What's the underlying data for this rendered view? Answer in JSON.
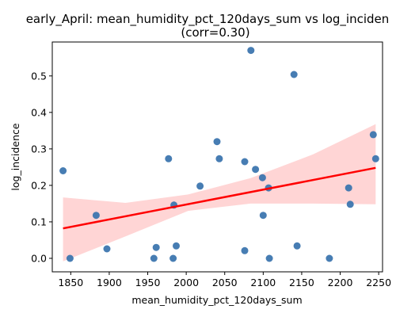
{
  "chart_data": {
    "type": "scatter",
    "title_line1": "early_April: mean_humidity_pct_120days_sum vs log_inciden",
    "title_line2": "(corr=0.30)",
    "xlabel": "mean_humidity_pct_120days_sum",
    "ylabel": "log_incidence",
    "xlim": [
      1826,
      2255
    ],
    "ylim": [
      -0.037,
      0.593
    ],
    "xticks": [
      1850,
      1900,
      1950,
      2000,
      2050,
      2100,
      2150,
      2200,
      2250
    ],
    "yticks": [
      0.0,
      0.1,
      0.2,
      0.3,
      0.4,
      0.5
    ],
    "grid": false,
    "points": [
      {
        "x": 1840,
        "y": 0.24
      },
      {
        "x": 1849,
        "y": 0.0
      },
      {
        "x": 1883,
        "y": 0.118
      },
      {
        "x": 1897,
        "y": 0.026
      },
      {
        "x": 1958,
        "y": 0.0
      },
      {
        "x": 1961,
        "y": 0.03
      },
      {
        "x": 1977,
        "y": 0.273
      },
      {
        "x": 1983,
        "y": 0.0
      },
      {
        "x": 1984,
        "y": 0.146
      },
      {
        "x": 1987,
        "y": 0.034
      },
      {
        "x": 2018,
        "y": 0.198
      },
      {
        "x": 2040,
        "y": 0.32
      },
      {
        "x": 2043,
        "y": 0.273
      },
      {
        "x": 2076,
        "y": 0.265
      },
      {
        "x": 2076,
        "y": 0.021
      },
      {
        "x": 2084,
        "y": 0.57
      },
      {
        "x": 2090,
        "y": 0.244
      },
      {
        "x": 2099,
        "y": 0.221
      },
      {
        "x": 2100,
        "y": 0.118
      },
      {
        "x": 2107,
        "y": 0.193
      },
      {
        "x": 2108,
        "y": 0.0
      },
      {
        "x": 2140,
        "y": 0.504
      },
      {
        "x": 2144,
        "y": 0.034
      },
      {
        "x": 2186,
        "y": 0.0
      },
      {
        "x": 2211,
        "y": 0.193
      },
      {
        "x": 2213,
        "y": 0.148
      },
      {
        "x": 2243,
        "y": 0.339
      },
      {
        "x": 2246,
        "y": 0.273
      }
    ],
    "regression": {
      "x_range": [
        1840,
        2246
      ],
      "y_range": [
        0.082,
        0.248
      ],
      "ci_upper": [
        0.167,
        0.152,
        0.175,
        0.22,
        0.285,
        0.368
      ],
      "ci_lower": [
        -0.008,
        0.06,
        0.13,
        0.15,
        0.15,
        0.148
      ]
    },
    "colors": {
      "points": "#3d76af",
      "line": "#ff0000",
      "band": "#ffb3b3"
    }
  }
}
